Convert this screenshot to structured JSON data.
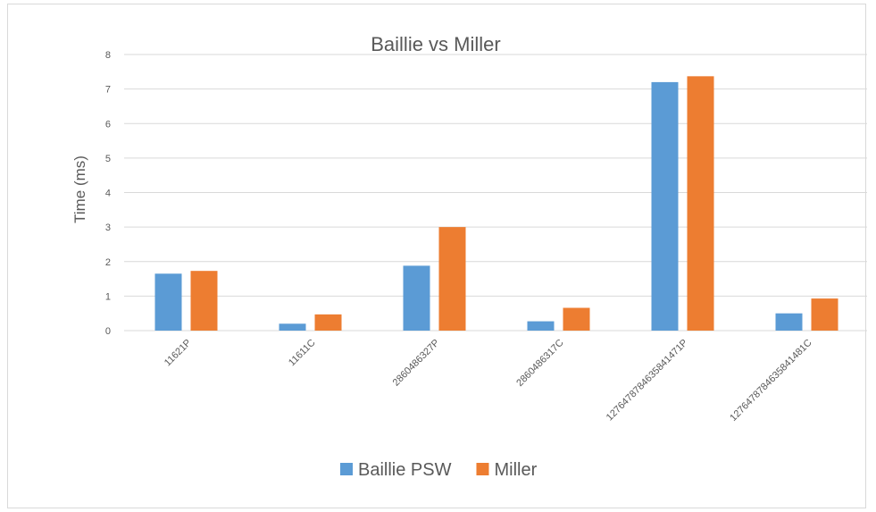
{
  "chart_data": {
    "type": "bar",
    "title": "Baillie vs Miller",
    "ylabel": "Time (ms)",
    "xlabel": "",
    "ylim": [
      0,
      8
    ],
    "yticks": [
      0,
      1,
      2,
      3,
      4,
      5,
      6,
      7,
      8
    ],
    "grid": true,
    "legend_position": "bottom",
    "categories": [
      "11621P",
      "11611C",
      "2860486327P",
      "2860486317C",
      "1276478784635841471P",
      "1276478784635841481C"
    ],
    "series": [
      {
        "name": "Baillie PSW",
        "color": "#5b9bd5",
        "values": [
          1.65,
          0.2,
          1.88,
          0.27,
          7.2,
          0.5
        ]
      },
      {
        "name": "Miller",
        "color": "#ed7d31",
        "values": [
          1.73,
          0.47,
          3.0,
          0.66,
          7.37,
          0.93
        ]
      }
    ]
  }
}
